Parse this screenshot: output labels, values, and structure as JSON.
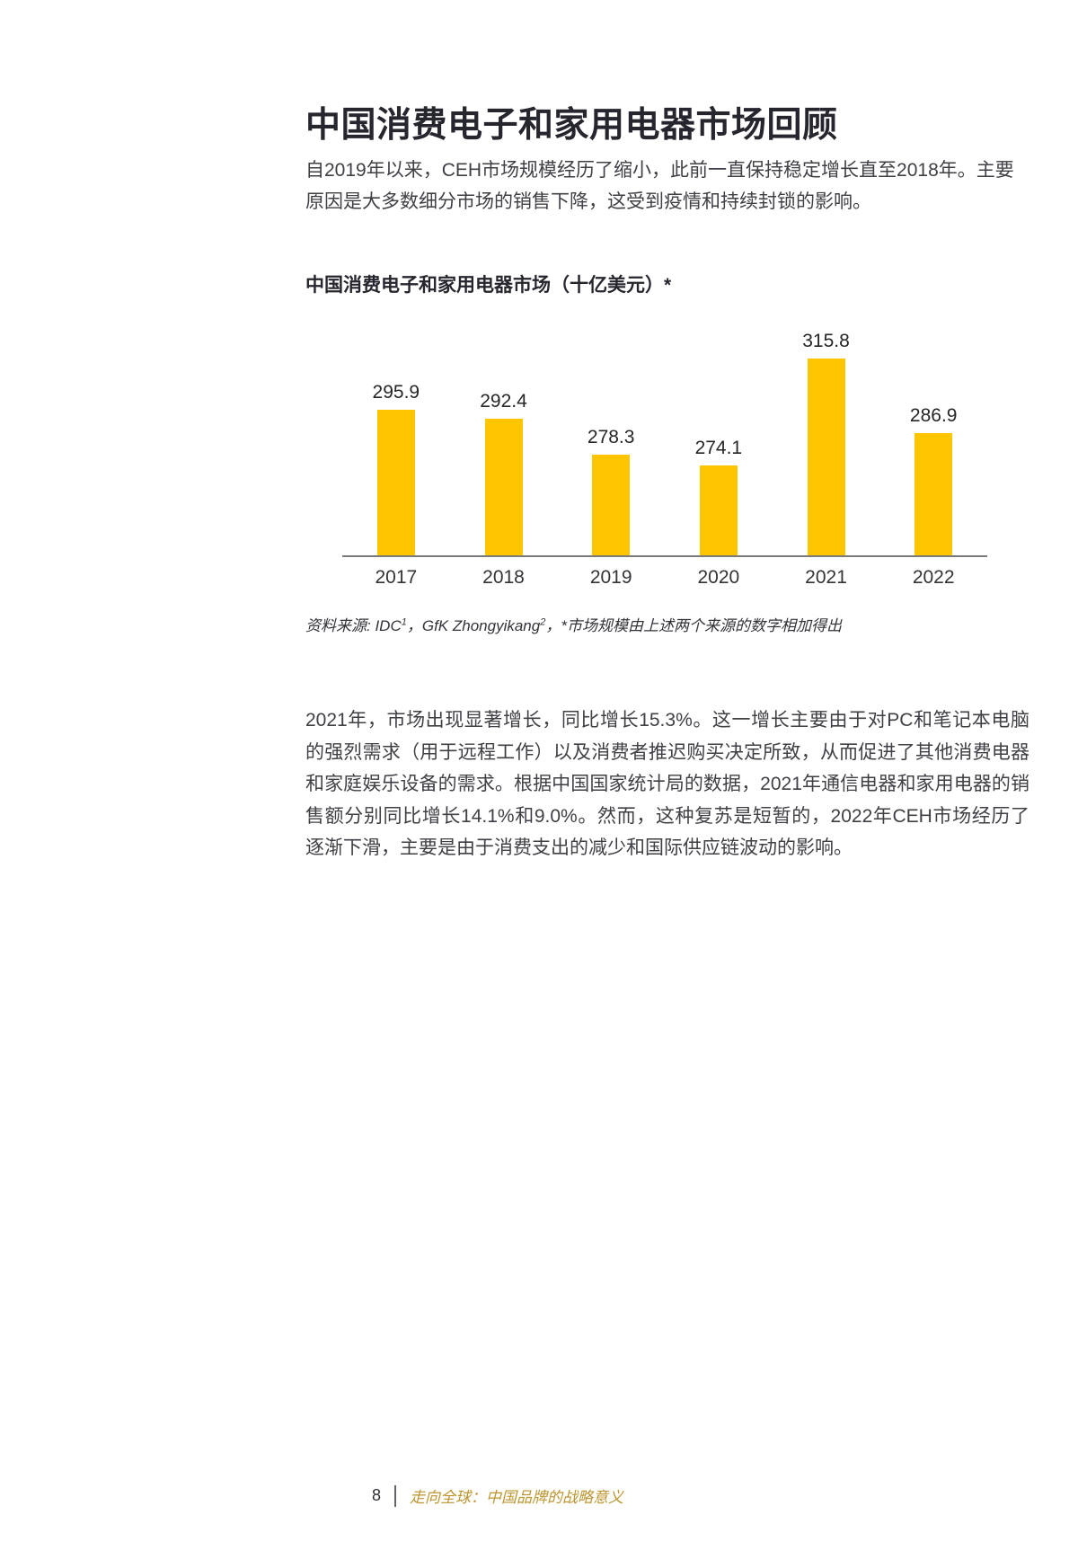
{
  "page": {
    "title": "中国消费电子和家用电器市场回顾",
    "intro": "自2019年以来，CEH市场规模经历了缩小，此前一直保持稳定增长直至2018年。主要原因是大多数细分市场的销售下降，这受到疫情和持续封锁的影响。",
    "body": "2021年，市场出现显著增长，同比增长15.3%。这一增长主要由于对PC和笔记本电脑的强烈需求（用于远程工作）以及消费者推迟购买决定所致，从而促进了其他消费电器和家庭娱乐设备的需求。根据中国国家统计局的数据，2021年通信电器和家用电器的销售额分别同比增长14.1%和9.0%。然而，这种复苏是短暂的，2022年CEH市场经历了逐渐下滑，主要是由于消费支出的减少和国际供应链波动的影响。"
  },
  "chart_data": {
    "type": "bar",
    "title": "中国消费电子和家用电器市场（十亿美元）*",
    "categories": [
      "2017",
      "2018",
      "2019",
      "2020",
      "2021",
      "2022"
    ],
    "values": [
      295.9,
      292.4,
      278.3,
      274.1,
      315.8,
      286.9
    ],
    "unit_label": "十亿美元",
    "value_labels_shown": true,
    "grid": false,
    "legend": "none",
    "baseline_truncated": true,
    "ylim_estimated": [
      239,
      338
    ],
    "bar_color": "#FFC600"
  },
  "source_note": {
    "prefix": "资料来源: IDC",
    "sup1": "1",
    "middle": "，GfK Zhongyikang",
    "sup2": "2",
    "suffix": "，*市场规模由上述两个来源的数字相加得出"
  },
  "footer": {
    "page_number": "8",
    "report_title": "走向全球：中国品牌的战略意义"
  },
  "colors": {
    "heading": "#26262E",
    "body_text": "#3F3F46",
    "bar": "#FFC600",
    "axis": "#7A7A7A",
    "footer_accent": "#BD9530"
  }
}
